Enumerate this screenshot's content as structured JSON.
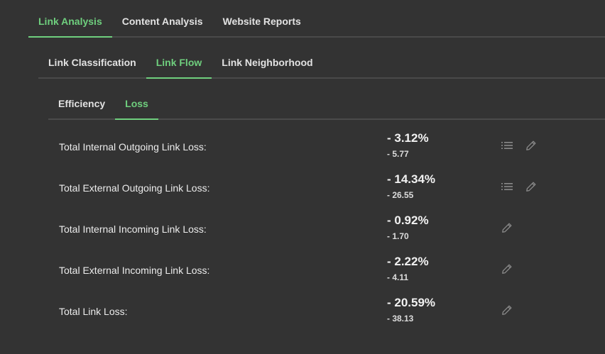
{
  "tabs_l1": [
    "Link Analysis",
    "Content Analysis",
    "Website Reports"
  ],
  "tabs_l2": [
    "Link Classification",
    "Link Flow",
    "Link Neighborhood"
  ],
  "tabs_l3": [
    "Efficiency",
    "Loss"
  ],
  "active": {
    "l1": "Link Analysis",
    "l2": "Link Flow",
    "l3": "Loss"
  },
  "colors": {
    "background": "#333333",
    "accent": "#6fcf7e",
    "divider": "#4a4a4a",
    "icon": "#8a8a8a"
  },
  "metrics": [
    {
      "label": "Total Internal Outgoing Link Loss:",
      "percent": "- 3.12%",
      "value": "- 5.77",
      "icons": [
        "list-icon",
        "pencil-icon"
      ]
    },
    {
      "label": "Total External Outgoing Link Loss:",
      "percent": "- 14.34%",
      "value": "- 26.55",
      "icons": [
        "list-icon",
        "pencil-icon"
      ]
    },
    {
      "label": "Total Internal Incoming Link Loss:",
      "percent": "- 0.92%",
      "value": "- 1.70",
      "icons": [
        "pencil-icon"
      ]
    },
    {
      "label": "Total External Incoming Link Loss:",
      "percent": "- 2.22%",
      "value": "- 4.11",
      "icons": [
        "pencil-icon"
      ]
    },
    {
      "label": "Total Link Loss:",
      "percent": "- 20.59%",
      "value": "- 38.13",
      "icons": [
        "pencil-icon"
      ]
    }
  ]
}
